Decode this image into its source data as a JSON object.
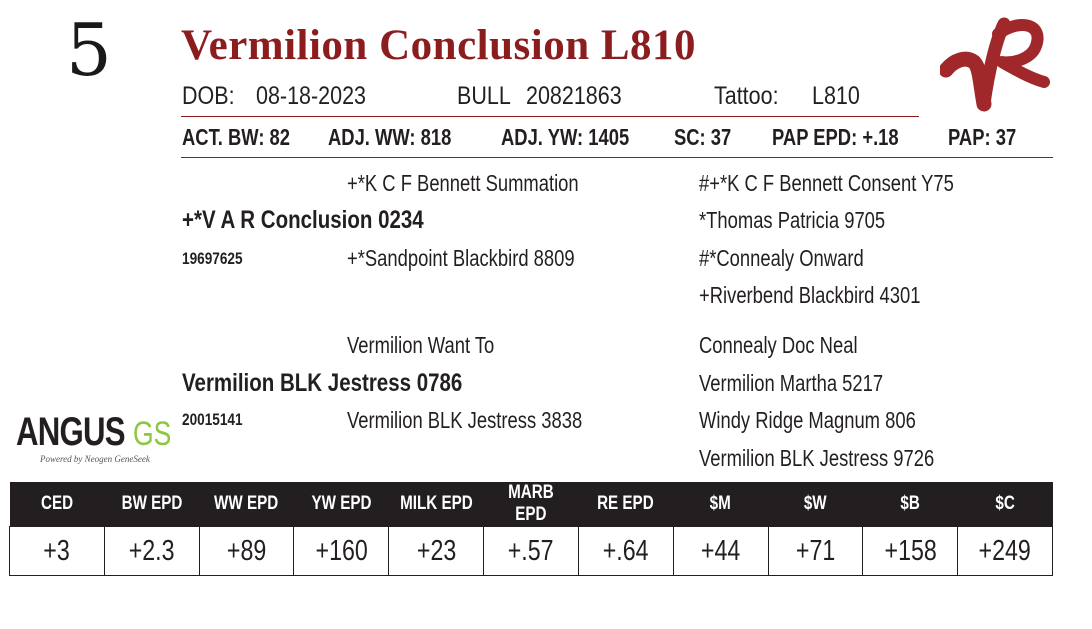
{
  "lot_number": "5",
  "title": "Vermilion Conclusion L810",
  "info": {
    "dob_label": "DOB:",
    "dob_value": "08-18-2023",
    "sex_label": "BULL",
    "reg_number": "20821863",
    "tattoo_label": "Tattoo:",
    "tattoo_value": "L810"
  },
  "stats": {
    "act_bw": "ACT. BW: 82",
    "adj_ww": "ADJ. WW: 818",
    "adj_yw": "ADJ. YW: 1405",
    "sc": "SC: 37",
    "pap_epd": "PAP EPD: +.18",
    "pap": "PAP: 37"
  },
  "pedigree": {
    "sire": {
      "name": "+*V A R Conclusion 0234",
      "reg": "19697625",
      "sire": "+*K C F Bennett Summation",
      "dam": "+*Sandpoint Blackbird 8809",
      "sire_sire": "#+*K C F Bennett Consent Y75",
      "sire_dam": "*Thomas Patricia 9705",
      "dam_sire": "#*Connealy Onward",
      "dam_dam": "+Riverbend Blackbird 4301"
    },
    "dam": {
      "name": "Vermilion BLK Jestress 0786",
      "reg": "20015141",
      "sire": "Vermilion Want To",
      "dam": "Vermilion BLK Jestress 3838",
      "sire_sire": "Connealy Doc Neal",
      "sire_dam": "Vermilion Martha 5217",
      "dam_sire": "Windy Ridge Magnum 806",
      "dam_dam": "Vermilion BLK Jestress 9726"
    }
  },
  "logo": {
    "text_angus": "ANGUS",
    "text_gs": "GS",
    "tagline": "Powered by Neogen GeneSeek",
    "brand_mark": "VR"
  },
  "epd": {
    "headers": [
      "CED",
      "BW EPD",
      "WW EPD",
      "YW EPD",
      "MILK EPD",
      "MARB EPD",
      "RE EPD",
      "$M",
      "$W",
      "$B",
      "$C"
    ],
    "values": [
      "+3",
      "+2.3",
      "+89",
      "+160",
      "+23",
      "+.57",
      "+.64",
      "+44",
      "+71",
      "+158",
      "+249"
    ]
  },
  "colors": {
    "accent": "#8c1d1f",
    "text": "#231f20",
    "gs_green": "#8dc63f"
  }
}
